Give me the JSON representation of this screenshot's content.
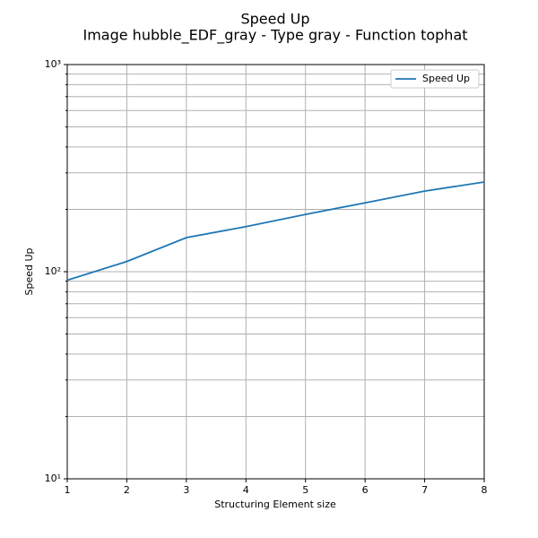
{
  "chart_data": {
    "type": "line",
    "title": "Speed Up",
    "subtitle": "Image hubble_EDF_gray - Type gray - Function tophat",
    "x_label": "Structuring Element size",
    "y_label": "Speed Up",
    "x": [
      1,
      2,
      3,
      4,
      5,
      6,
      7,
      8
    ],
    "series": [
      {
        "name": "Speed Up",
        "color": "#1f77b4",
        "values": [
          91,
          112,
          146,
          165,
          189,
          215,
          245,
          271
        ]
      }
    ],
    "xlim": [
      1,
      8
    ],
    "xticks": [
      1,
      2,
      3,
      4,
      5,
      6,
      7,
      8
    ],
    "ylim": [
      10,
      1000
    ],
    "yticks": [
      {
        "value": 10,
        "label": "10¹"
      },
      {
        "value": 100,
        "label": "10²"
      },
      {
        "value": 1000,
        "label": "10³"
      }
    ],
    "yminorticks": [
      20,
      30,
      40,
      50,
      60,
      70,
      80,
      90,
      200,
      300,
      400,
      500,
      600,
      700,
      800,
      900
    ],
    "yscale": "log",
    "grid": true,
    "legend": "upper right"
  }
}
